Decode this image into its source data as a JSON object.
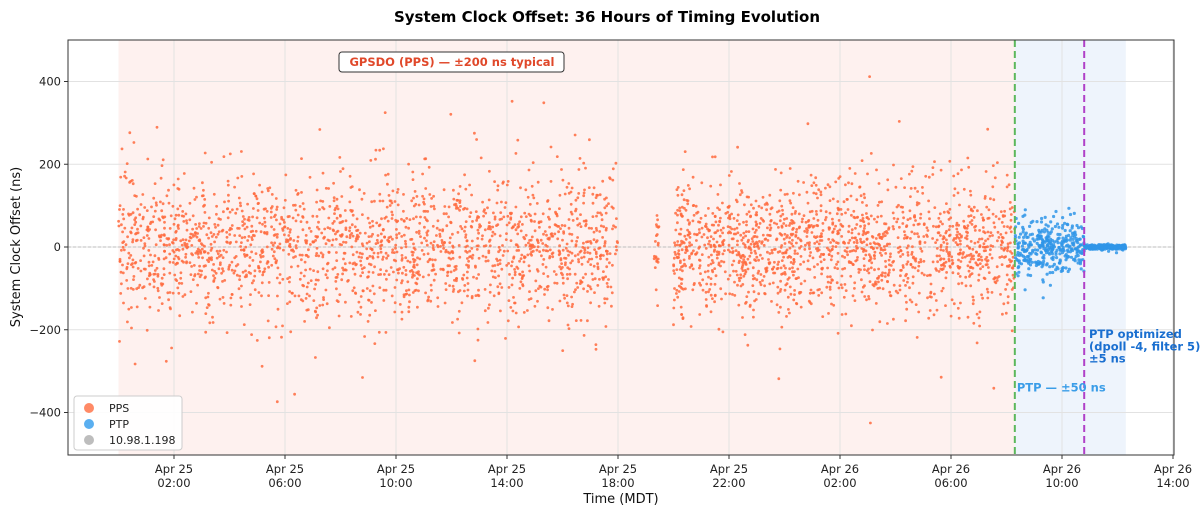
{
  "chart_data": {
    "type": "scatter",
    "title": "System Clock Offset: 36 Hours of Timing Evolution",
    "xlabel": "Time (MDT)",
    "ylabel": "System Clock Offset (ns)",
    "ylim": [
      -500,
      500
    ],
    "xlim_hours_from_apr25_0000": [
      -1.8,
      38.05
    ],
    "grid": true,
    "y_ticks": [
      {
        "value": 400,
        "label": "400"
      },
      {
        "value": 200,
        "label": "200"
      },
      {
        "value": 0,
        "label": "0"
      },
      {
        "value": -200,
        "label": "−200"
      },
      {
        "value": -400,
        "label": "−400"
      }
    ],
    "x_ticks": [
      {
        "hour": 2,
        "line1": "Apr 25",
        "line2": "02:00"
      },
      {
        "hour": 6,
        "line1": "Apr 25",
        "line2": "06:00"
      },
      {
        "hour": 10,
        "line1": "Apr 25",
        "line2": "10:00"
      },
      {
        "hour": 14,
        "line1": "Apr 25",
        "line2": "14:00"
      },
      {
        "hour": 18,
        "line1": "Apr 25",
        "line2": "18:00"
      },
      {
        "hour": 22,
        "line1": "Apr 25",
        "line2": "22:00"
      },
      {
        "hour": 26,
        "line1": "Apr 26",
        "line2": "02:00"
      },
      {
        "hour": 30,
        "line1": "Apr 26",
        "line2": "06:00"
      },
      {
        "hour": 34,
        "line1": "Apr 26",
        "line2": "10:00"
      },
      {
        "hour": 38,
        "line1": "Apr 26",
        "line2": "14:00"
      }
    ],
    "regions": [
      {
        "name": "GPSDO (PPS)",
        "start_hour": 0.0,
        "end_hour": 32.3,
        "color": "#fdecea"
      },
      {
        "name": "PTP",
        "start_hour": 32.3,
        "end_hour": 36.3,
        "color": "#e8f0fb"
      }
    ],
    "vlines": [
      {
        "hour": 32.3,
        "color": "#5cb85c",
        "style": "dashed",
        "label": "PTP — ±50 ns"
      },
      {
        "hour": 34.8,
        "color": "#b040c8",
        "style": "dashed",
        "label": "PTP optimized (dpoll -4, filter 5) ±5 ns"
      }
    ],
    "series": [
      {
        "name": "PPS",
        "color": "#ff6a3d",
        "segments": [
          {
            "start_hour": 0.0,
            "end_hour": 18.0,
            "std_ns": 85,
            "density_per_hour": 110
          },
          {
            "start_hour": 19.3,
            "end_hour": 19.5,
            "std_ns": 60,
            "density_per_hour": 110
          },
          {
            "start_hour": 20.0,
            "end_hour": 32.3,
            "std_ns": 75,
            "density_per_hour": 130
          }
        ]
      },
      {
        "name": "PTP",
        "color": "#2f95e8",
        "segments": [
          {
            "start_hour": 32.3,
            "end_hour": 34.8,
            "std_ns": 32,
            "density_per_hour": 140
          },
          {
            "start_hour": 34.8,
            "end_hour": 36.3,
            "std_ns": 2.5,
            "density_per_hour": 220
          }
        ]
      },
      {
        "name": "10.98.1.198",
        "color": "#b0b0b0",
        "segments": []
      }
    ],
    "annotations": [
      {
        "text": "GPSDO (PPS) — ±200 ns typical",
        "hour": 8.2,
        "y": 447,
        "color": "#e0482a",
        "boxed": true
      },
      {
        "text": "PTP — ±50 ns",
        "hour": 32.3,
        "y": -340,
        "color": "#3a9de8"
      },
      {
        "text": "PTP optimized",
        "hour": 34.9,
        "y": -210,
        "color": "#1a6fd0"
      },
      {
        "text": "(dpoll -4, filter 5)",
        "hour": 34.9,
        "y": -240,
        "color": "#1a6fd0"
      },
      {
        "text": "±5 ns",
        "hour": 34.9,
        "y": -270,
        "color": "#1a6fd0"
      }
    ],
    "legend": {
      "position": "lower left",
      "entries": [
        {
          "label": "PPS",
          "color": "#ff8a66"
        },
        {
          "label": "PTP",
          "color": "#5aaff0"
        },
        {
          "label": "10.98.1.198",
          "color": "#bdbdbd"
        }
      ]
    }
  }
}
